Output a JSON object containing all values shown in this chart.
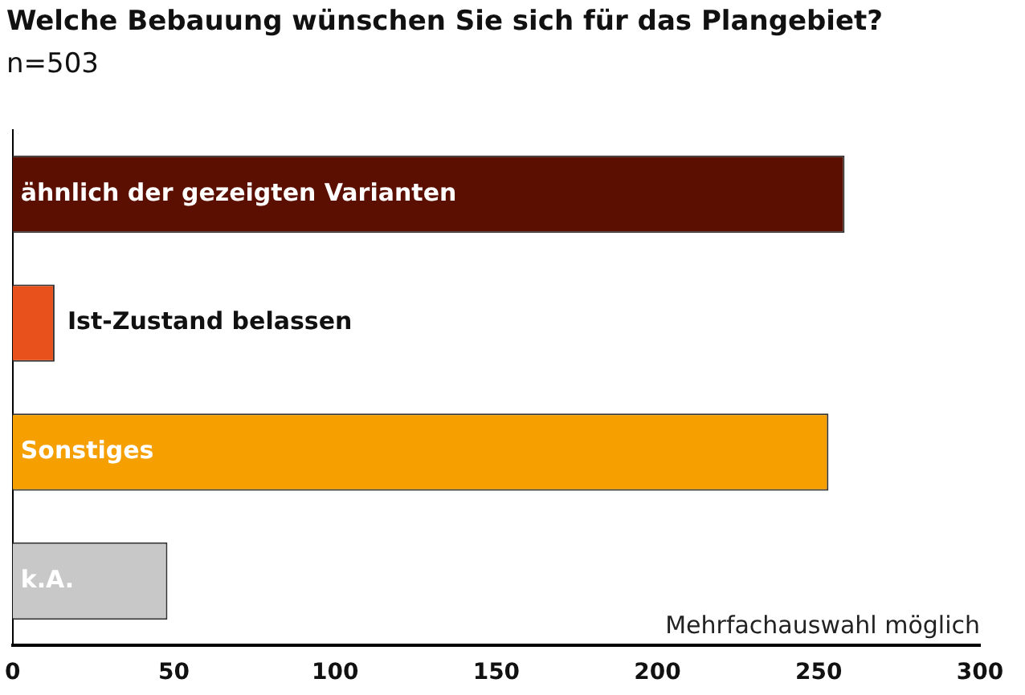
{
  "chart_data": {
    "type": "bar",
    "orientation": "horizontal",
    "title": "Welche Bebauung wünschen Sie sich für das Plangebiet?",
    "subtitle": "n=503",
    "categories": [
      "ähnlich der gezeigten Varianten",
      "Ist-Zustand belassen",
      "Sonstiges",
      "k.A."
    ],
    "values": [
      258,
      13,
      253,
      48
    ],
    "colors": [
      "#5a0f00",
      "#e8501c",
      "#f5a000",
      "#c8c8c8"
    ],
    "xlim": [
      0,
      300
    ],
    "xticks": [
      0,
      50,
      100,
      150,
      200,
      250,
      300
    ],
    "annotations": [
      "Mehrfachauswahl möglich"
    ],
    "grid": false,
    "legend": false,
    "tick_labels": "x"
  }
}
